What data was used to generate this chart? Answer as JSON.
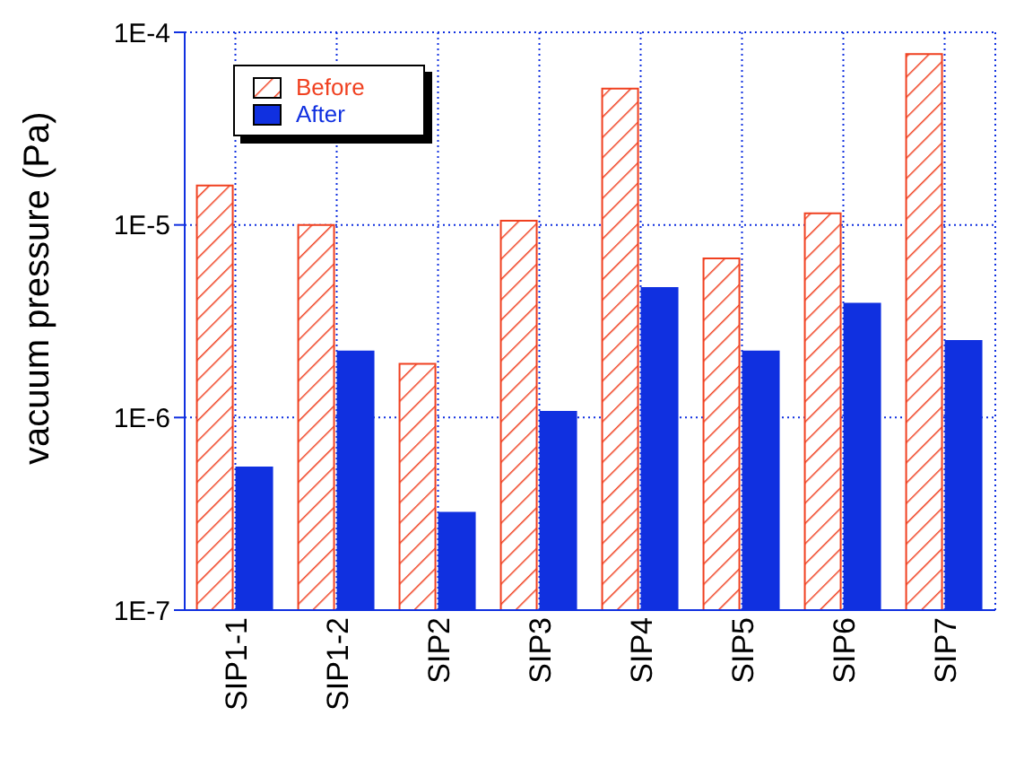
{
  "chart_data": {
    "type": "bar",
    "ylabel": "vacuum pressure (Pa)",
    "categories": [
      "SIP1-1",
      "SIP1-2",
      "SIP2",
      "SIP3",
      "SIP4",
      "SIP5",
      "SIP6",
      "SIP7"
    ],
    "series": [
      {
        "name": "Before",
        "color": "#f04020",
        "values": [
          1.6e-05,
          1e-05,
          1.9e-06,
          1.05e-05,
          5.1e-05,
          6.7e-06,
          1.15e-05,
          7.7e-05
        ]
      },
      {
        "name": "After",
        "color": "#1030e0",
        "values": [
          5.5e-07,
          2.2e-06,
          3.2e-07,
          1.07e-06,
          4.7e-06,
          2.2e-06,
          3.9e-06,
          2.5e-06
        ]
      }
    ],
    "log": "y",
    "ylim": [
      1e-07,
      0.0001
    ],
    "yticks": [
      {
        "value": 1e-07,
        "label": "1E-7"
      },
      {
        "value": 1e-06,
        "label": "1E-6"
      },
      {
        "value": 1e-05,
        "label": "1E-5"
      },
      {
        "value": 0.0001,
        "label": "1E-4"
      }
    ],
    "grid": true,
    "legend": "top left"
  }
}
